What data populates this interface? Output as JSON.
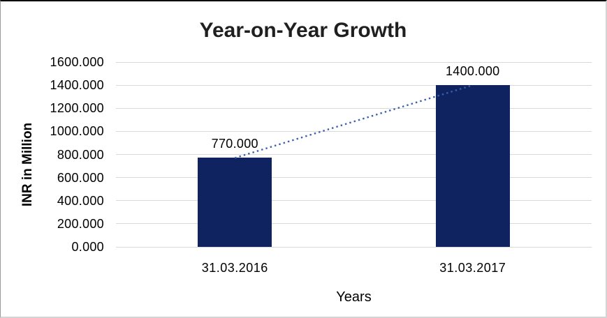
{
  "chart_data": {
    "type": "bar",
    "title": "Year-on-Year Growth",
    "xlabel": "Years",
    "ylabel": "INR in Million",
    "categories": [
      "31.03.2016",
      "31.03.2017"
    ],
    "values": [
      770,
      1400
    ],
    "data_labels": [
      "770.000",
      "1400.000"
    ],
    "y_ticks": [
      "1600.000",
      "1400.000",
      "1200.000",
      "1000.000",
      "800.000",
      "600.000",
      "400.000",
      "200.000",
      "0.000"
    ],
    "ylim": [
      0,
      1600
    ],
    "grid": true,
    "legend": false,
    "trendline": {
      "type": "linear",
      "style": "dotted",
      "connects_values": [
        770,
        1400
      ]
    },
    "colors": {
      "bar": "#0E2360",
      "trendline": "#3B5FAC",
      "gridline": "#D9D9D9",
      "title_text": "#1F1F1F",
      "axis_text": "#000000"
    }
  }
}
